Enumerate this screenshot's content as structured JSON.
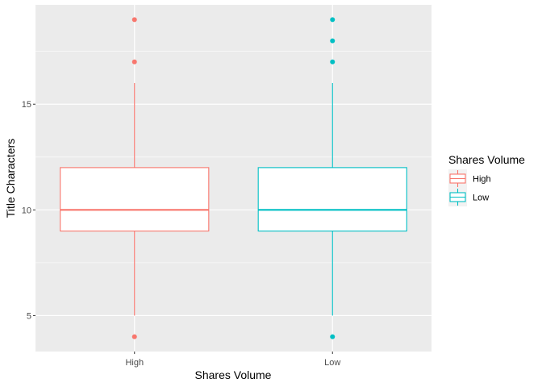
{
  "chart_data": {
    "type": "boxplot",
    "xlabel": "Shares Volume",
    "ylabel": "Title Characters",
    "ylim": [
      3.3,
      19.7
    ],
    "y_ticks": [
      5,
      10,
      15
    ],
    "grid": true,
    "panel_background": "#ebebeb",
    "categories": [
      "High",
      "Low"
    ],
    "series": [
      {
        "name": "High",
        "color": "#f8766d",
        "whisker_low": 5,
        "q1": 9,
        "median": 10,
        "q3": 12,
        "whisker_high": 16,
        "outliers": [
          4,
          17,
          19
        ]
      },
      {
        "name": "Low",
        "color": "#00bfc4",
        "whisker_low": 5,
        "q1": 9,
        "median": 10,
        "q3": 12,
        "whisker_high": 16,
        "outliers": [
          4,
          17,
          18,
          19
        ]
      }
    ],
    "legend": {
      "title": "Shares Volume",
      "position": "right",
      "entries": [
        "High",
        "Low"
      ]
    }
  }
}
